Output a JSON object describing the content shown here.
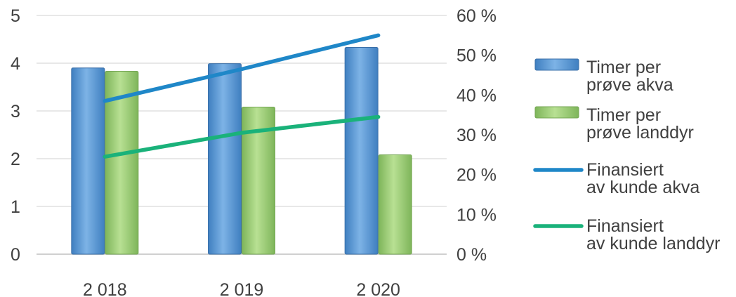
{
  "chart_data": {
    "type": "bar",
    "categories": [
      "2 018",
      "2 019",
      "2 020"
    ],
    "series": [
      {
        "name": "Timer per prøve akva",
        "type": "bar",
        "axis": "left",
        "values": [
          3.9,
          3.99,
          4.33
        ],
        "color": "#5b9bd5"
      },
      {
        "name": "Timer per prøve landdyr",
        "type": "bar",
        "axis": "left",
        "values": [
          3.83,
          3.08,
          2.08
        ],
        "color": "#9bcd75"
      },
      {
        "name": "Finansiert av kunde akva",
        "type": "line",
        "axis": "right",
        "values": [
          38.5,
          46.5,
          55
        ],
        "color": "#1f87c8"
      },
      {
        "name": "Finansiert av kunde landdyr",
        "type": "line",
        "axis": "right",
        "values": [
          24.5,
          30.5,
          34.5
        ],
        "color": "#1ab27a"
      }
    ],
    "legend_labels": [
      [
        "Timer per",
        "prøve akva"
      ],
      [
        "Timer per",
        "prøve landdyr"
      ],
      [
        "Finansiert",
        "av kunde akva"
      ],
      [
        "Finansiert",
        "av kunde landdyr"
      ]
    ],
    "y_left": {
      "ylim": [
        0,
        5
      ],
      "ticks": [
        "0",
        "1",
        "2",
        "3",
        "4",
        "5"
      ]
    },
    "y_right": {
      "ylim": [
        0,
        60
      ],
      "ticks": [
        "0 %",
        "10 %",
        "20 %",
        "30 %",
        "40 %",
        "50 %",
        "60 %"
      ]
    },
    "title": "",
    "xlabel": "",
    "ylabel": "",
    "grid": true,
    "legend_position": "right"
  }
}
